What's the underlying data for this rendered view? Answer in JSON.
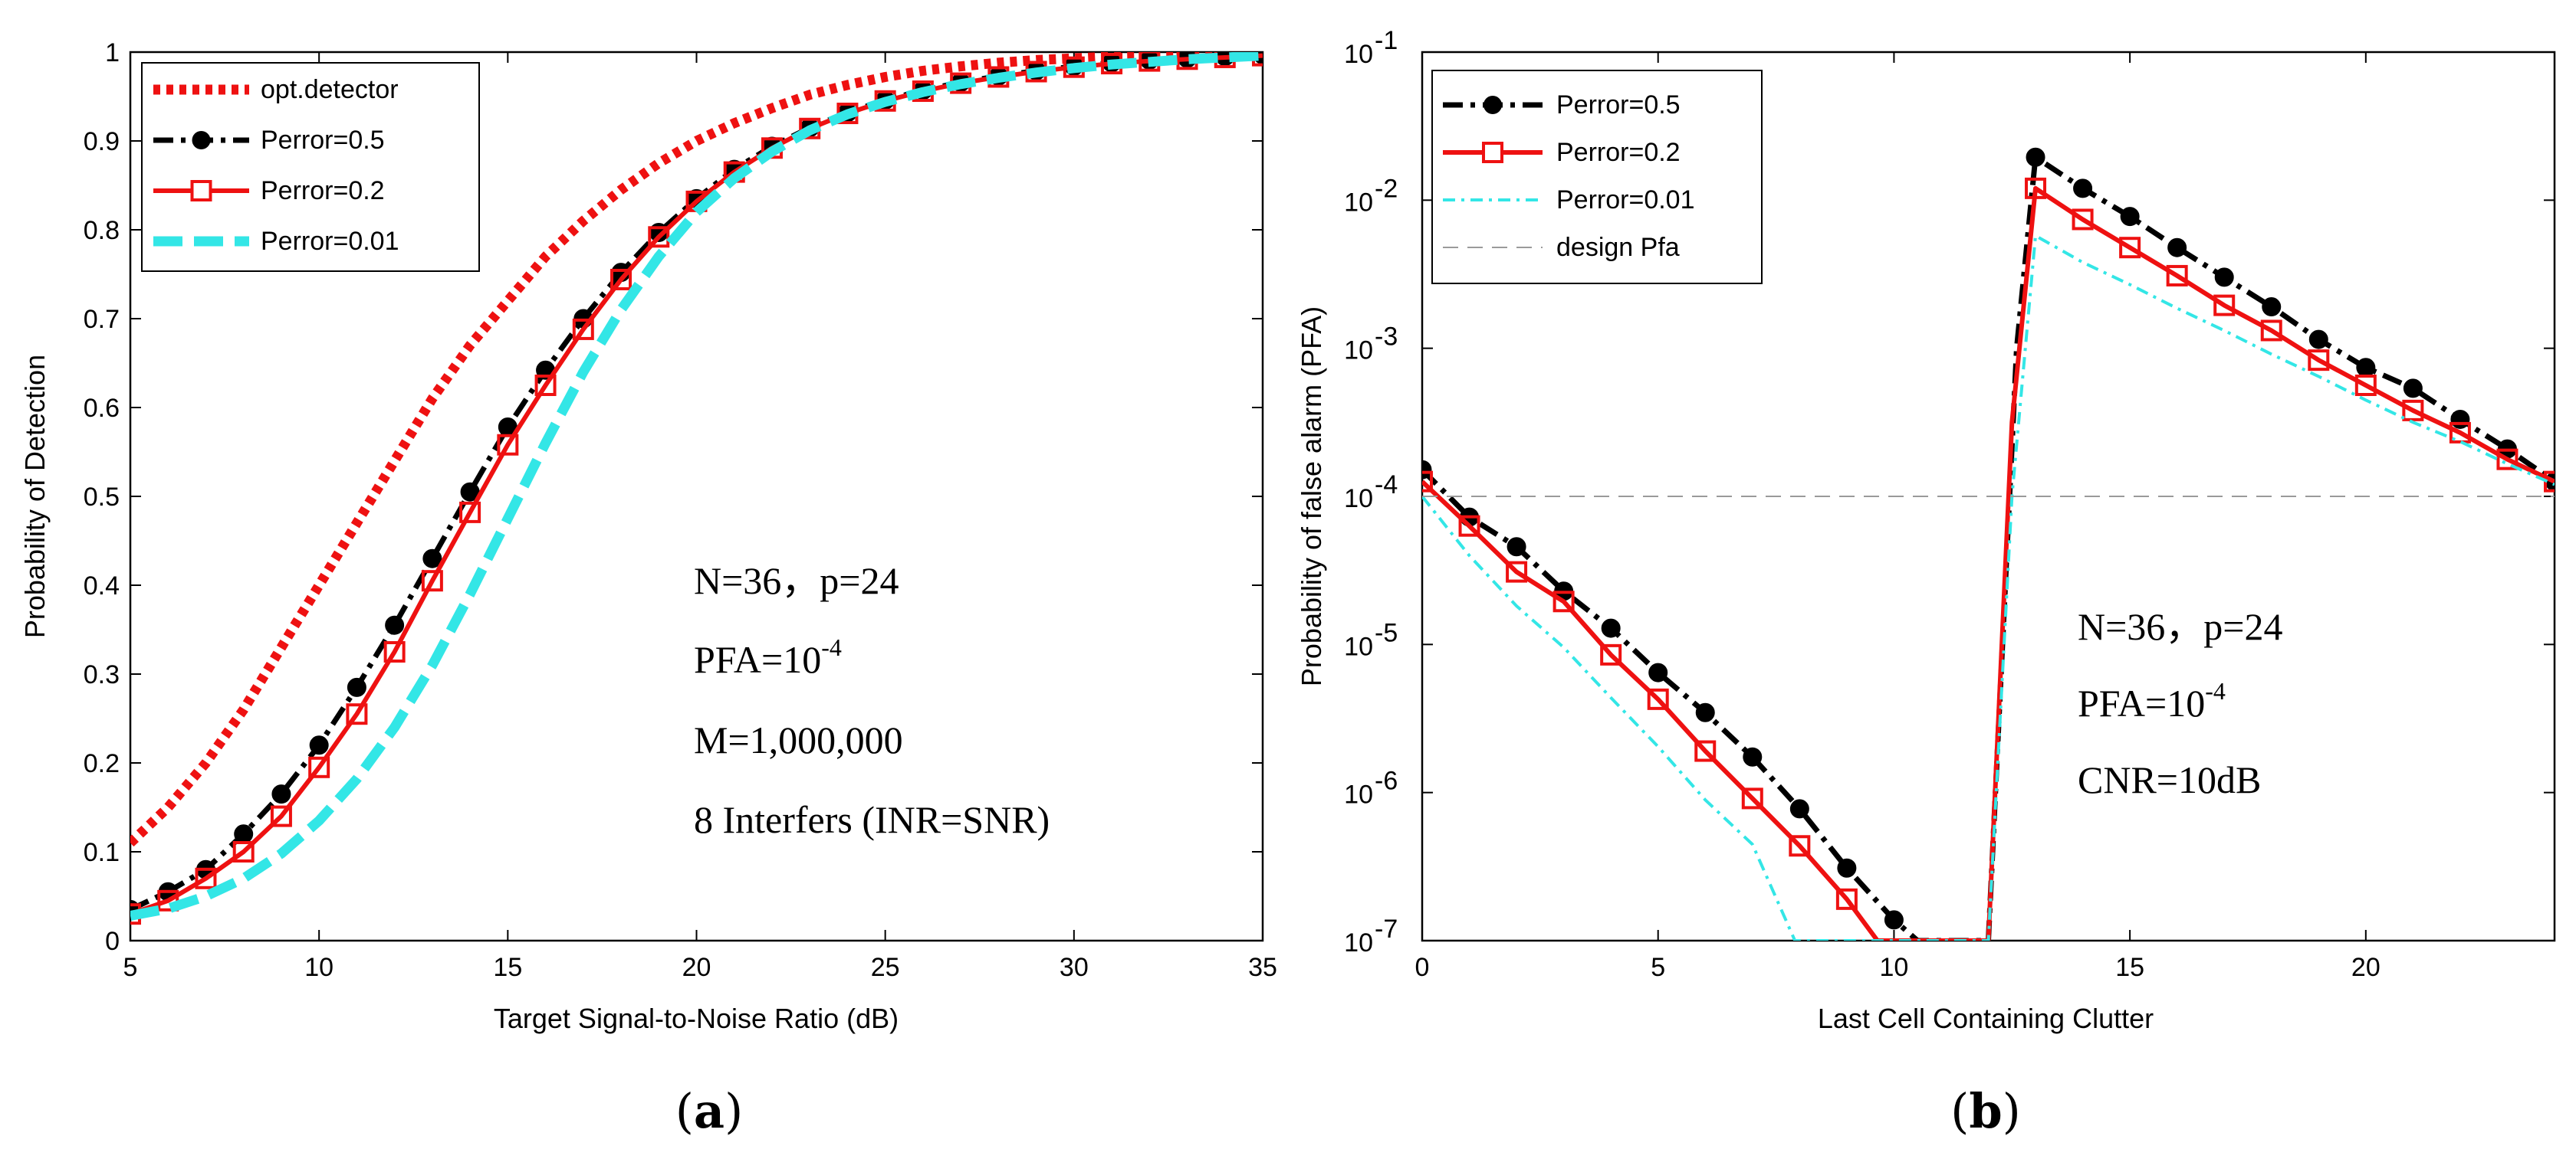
{
  "chart_data": [
    {
      "type": "line",
      "panel_label": "a",
      "xlabel": "Target Signal-to-Noise Ratio (dB)",
      "ylabel": "Probability of Detection",
      "xlim": [
        5,
        35
      ],
      "ylim": [
        0,
        1
      ],
      "xticks": [
        "5",
        "10",
        "15",
        "20",
        "25",
        "30",
        "35"
      ],
      "yticks": [
        "0",
        "0.1",
        "0.2",
        "0.3",
        "0.4",
        "0.5",
        "0.6",
        "0.7",
        "0.8",
        "0.9",
        "1"
      ],
      "x": [
        5,
        6,
        7,
        8,
        9,
        10,
        11,
        12,
        13,
        14,
        15,
        16,
        17,
        18,
        19,
        20,
        21,
        22,
        23,
        24,
        25,
        26,
        27,
        28,
        29,
        30,
        31,
        32,
        33,
        34,
        35
      ],
      "series": [
        {
          "name": "opt.detector",
          "style": "dotted",
          "color": "#ee1111",
          "values": [
            0.11,
            0.15,
            0.2,
            0.26,
            0.33,
            0.4,
            0.47,
            0.54,
            0.61,
            0.67,
            0.72,
            0.77,
            0.81,
            0.845,
            0.875,
            0.9,
            0.92,
            0.937,
            0.952,
            0.963,
            0.972,
            0.979,
            0.984,
            0.988,
            0.991,
            0.993,
            0.995,
            0.996,
            0.997,
            0.998,
            0.999
          ]
        },
        {
          "name": "Perror=0.5",
          "style": "dashdot-filled-circle",
          "color": "#000000",
          "values": [
            0.035,
            0.055,
            0.08,
            0.12,
            0.165,
            0.22,
            0.285,
            0.355,
            0.43,
            0.505,
            0.578,
            0.642,
            0.7,
            0.752,
            0.797,
            0.835,
            0.868,
            0.894,
            0.915,
            0.932,
            0.946,
            0.957,
            0.966,
            0.973,
            0.979,
            0.984,
            0.988,
            0.991,
            0.993,
            0.995,
            0.997
          ]
        },
        {
          "name": "Perror=0.2",
          "style": "solid-open-square",
          "color": "#ee1111",
          "values": [
            0.03,
            0.045,
            0.07,
            0.1,
            0.14,
            0.195,
            0.255,
            0.325,
            0.405,
            0.482,
            0.558,
            0.625,
            0.688,
            0.744,
            0.792,
            0.832,
            0.865,
            0.892,
            0.914,
            0.931,
            0.945,
            0.956,
            0.965,
            0.972,
            0.978,
            0.983,
            0.987,
            0.99,
            0.992,
            0.994,
            0.996
          ]
        },
        {
          "name": "Perror=0.01",
          "style": "dashed",
          "color": "#33e6e6",
          "values": [
            0.028,
            0.036,
            0.05,
            0.07,
            0.098,
            0.135,
            0.182,
            0.24,
            0.31,
            0.39,
            0.475,
            0.56,
            0.64,
            0.71,
            0.77,
            0.82,
            0.858,
            0.888,
            0.912,
            0.93,
            0.944,
            0.955,
            0.964,
            0.971,
            0.977,
            0.982,
            0.986,
            0.989,
            0.992,
            0.994,
            0.996
          ]
        }
      ],
      "legend_location": "top-left",
      "annotations": [
        {
          "text": "N=36，p=24"
        },
        {
          "text": "PFA=10",
          "sup": "-4"
        },
        {
          "text": "M=1,000,000"
        },
        {
          "text": "8 Interfers (INR=SNR)"
        }
      ]
    },
    {
      "type": "line",
      "panel_label": "b",
      "xlabel": "Last Cell Containing Clutter",
      "ylabel": "Probability of false alarm (PFA)",
      "xlim": [
        0,
        24
      ],
      "yscale": "log",
      "ylim_exp": [
        -7,
        -1
      ],
      "xticks": [
        "0",
        "5",
        "10",
        "15",
        "20"
      ],
      "yticks": [
        {
          "base": "10",
          "exp": "-7"
        },
        {
          "base": "10",
          "exp": "-6"
        },
        {
          "base": "10",
          "exp": "-5"
        },
        {
          "base": "10",
          "exp": "-4"
        },
        {
          "base": "10",
          "exp": "-3"
        },
        {
          "base": "10",
          "exp": "-2"
        },
        {
          "base": "10",
          "exp": "-1"
        }
      ],
      "series": [
        {
          "name": "Perror=0.5",
          "style": "dashdot-filled-circle",
          "color": "#000000",
          "x": [
            0,
            1,
            2,
            3,
            4,
            5,
            6,
            7,
            8,
            9,
            10,
            10.5,
            12,
            12.6,
            13,
            14,
            15,
            16,
            17,
            18,
            19,
            20,
            21,
            22,
            23,
            24
          ],
          "values": [
            -3.82,
            -4.14,
            -4.34,
            -4.64,
            -4.89,
            -5.19,
            -5.46,
            -5.76,
            -6.11,
            -6.51,
            -6.86,
            -7.0,
            -7.0,
            -3.0,
            -1.71,
            -1.92,
            -2.11,
            -2.32,
            -2.52,
            -2.72,
            -2.94,
            -3.13,
            -3.27,
            -3.48,
            -3.68,
            -3.9
          ]
        },
        {
          "name": "Perror=0.2",
          "style": "solid-open-square",
          "color": "#ee1111",
          "x": [
            0,
            1,
            2,
            3,
            4,
            5,
            6,
            7,
            8,
            9,
            9.65,
            12,
            12.5,
            13,
            14,
            15,
            16,
            17,
            18,
            19,
            20,
            21,
            22,
            23,
            24
          ],
          "values": [
            -3.9,
            -4.2,
            -4.51,
            -4.71,
            -5.07,
            -5.37,
            -5.72,
            -6.04,
            -6.36,
            -6.72,
            -7.0,
            -7.0,
            -3.5,
            -1.92,
            -2.13,
            -2.32,
            -2.51,
            -2.71,
            -2.88,
            -3.08,
            -3.25,
            -3.42,
            -3.57,
            -3.75,
            -3.9
          ]
        },
        {
          "name": "Perror=0.01",
          "style": "dashdot",
          "color": "#33e6e6",
          "x": [
            0,
            1,
            2,
            3,
            4,
            5,
            6,
            7,
            7.9,
            12,
            12.5,
            13,
            14,
            15,
            16,
            17,
            18,
            19,
            20,
            21,
            22,
            23,
            24
          ],
          "values": [
            -4.0,
            -4.4,
            -4.74,
            -5.02,
            -5.36,
            -5.69,
            -6.05,
            -6.35,
            -7.0,
            -7.0,
            -4.0,
            -2.24,
            -2.42,
            -2.57,
            -2.73,
            -2.88,
            -3.04,
            -3.19,
            -3.35,
            -3.5,
            -3.63,
            -3.78,
            -3.92
          ]
        },
        {
          "name": "design Pfa",
          "style": "thin-dashed",
          "color": "#9a9a9a",
          "x": [
            0,
            24
          ],
          "values": [
            -4,
            -4
          ]
        }
      ],
      "legend_location": "top-left",
      "annotations": [
        {
          "text": "N=36，p=24"
        },
        {
          "text": "PFA=10",
          "sup": "-4"
        },
        {
          "text": "CNR=10dB"
        }
      ]
    }
  ]
}
